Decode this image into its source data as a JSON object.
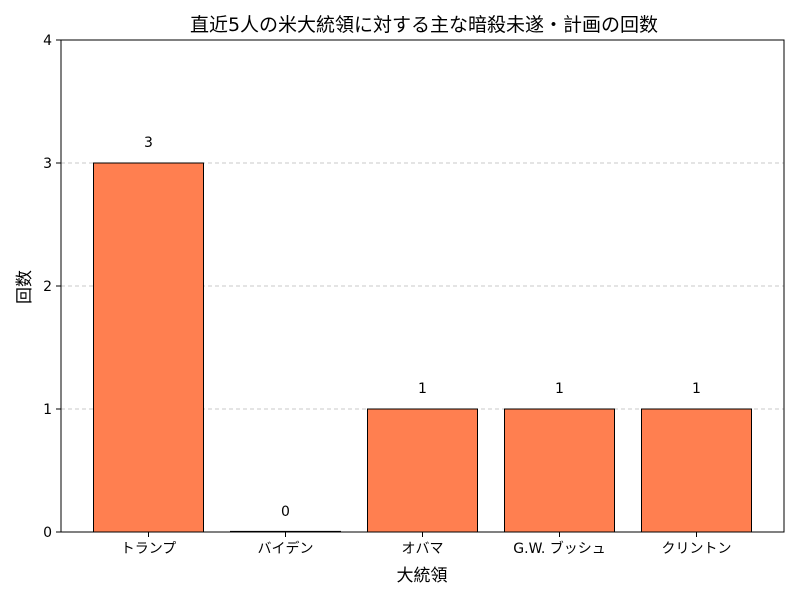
{
  "chart_data": {
    "type": "bar",
    "title": "直近5人の米大統領に対する主な暗殺未遂・計画の回数",
    "xlabel": "大統領",
    "ylabel": "回数",
    "categories": [
      "トランプ",
      "バイデン",
      "オバマ",
      "G.W. ブッシュ",
      "クリントン"
    ],
    "values": [
      3,
      0,
      1,
      1,
      1
    ],
    "data_labels": [
      "3",
      "0",
      "1",
      "1",
      "1"
    ],
    "ylim": [
      0,
      4
    ],
    "yticks": [
      0,
      1,
      2,
      3,
      4
    ],
    "grid": "y-dashed",
    "colors": {
      "bar": "#FF7F50",
      "bar_edge": "#000000",
      "grid": "#c8c8c8"
    }
  }
}
